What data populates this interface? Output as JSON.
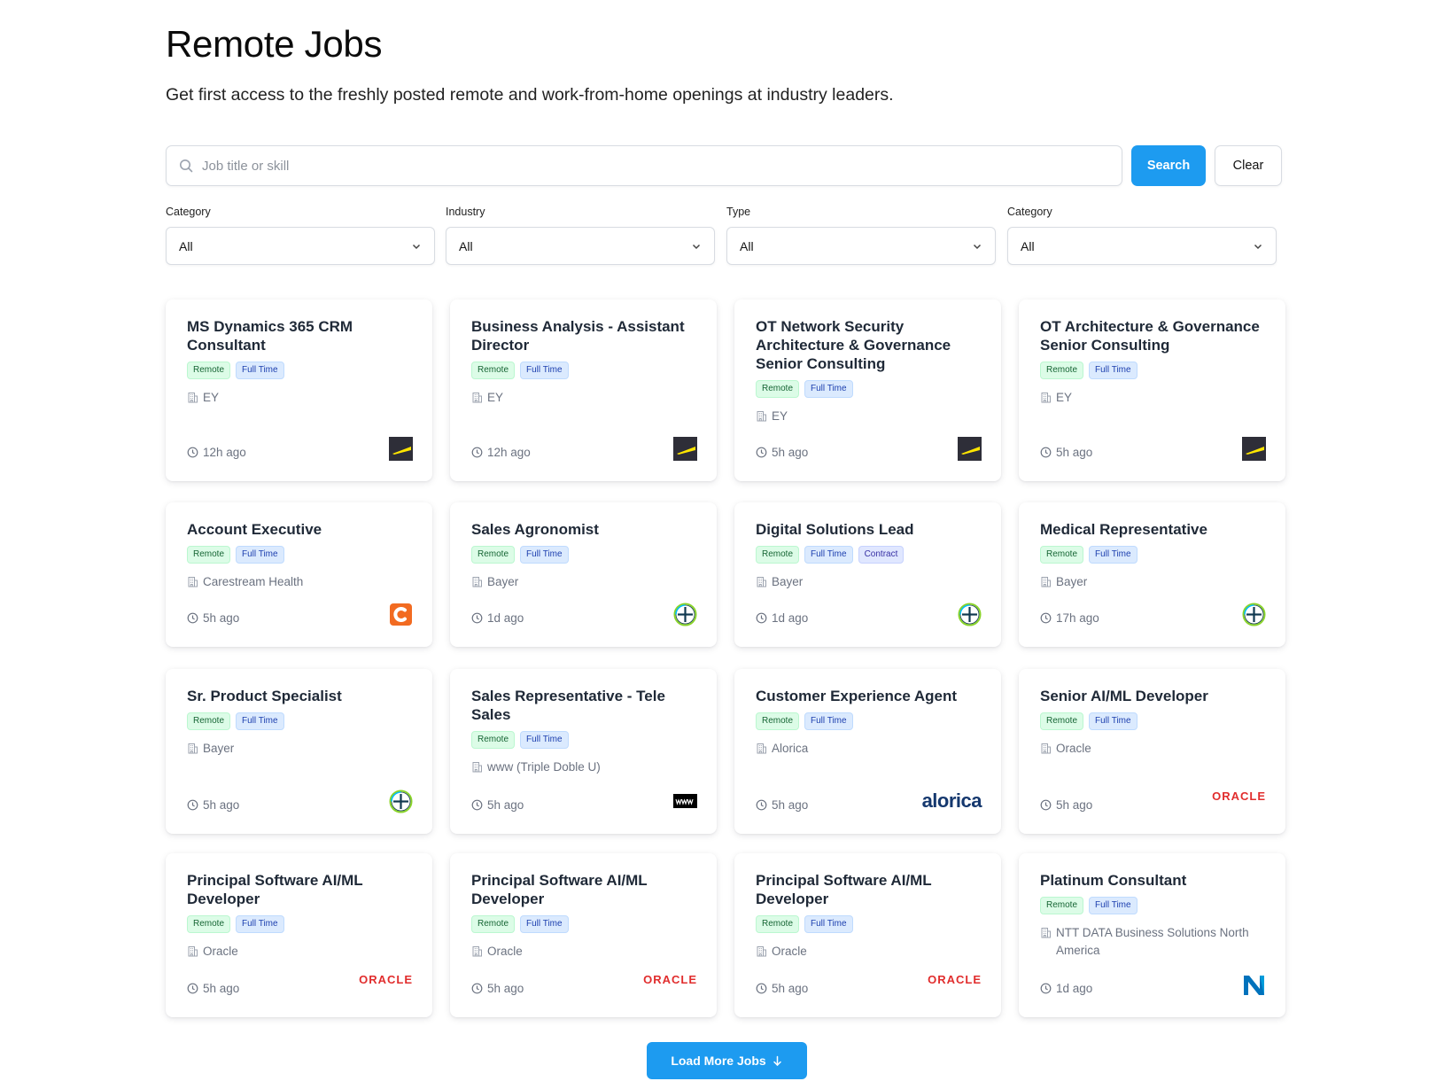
{
  "header": {
    "title": "Remote Jobs",
    "subtitle": "Get first access to the freshly posted remote and work-from-home openings at industry leaders."
  },
  "search": {
    "placeholder": "Job title or skill",
    "value": "",
    "search_label": "Search",
    "clear_label": "Clear"
  },
  "filters": [
    {
      "label": "Category",
      "value": "All"
    },
    {
      "label": "Industry",
      "value": "All"
    },
    {
      "label": "Type",
      "value": "All"
    },
    {
      "label": "Category",
      "value": "All"
    }
  ],
  "jobs": [
    {
      "title": "MS Dynamics 365 CRM Consultant",
      "tags": [
        "Remote",
        "Full Time"
      ],
      "company": "EY",
      "posted": "12h ago",
      "logo": "ey-logo"
    },
    {
      "title": "Business Analysis - Assistant Director",
      "tags": [
        "Remote",
        "Full Time"
      ],
      "company": "EY",
      "posted": "12h ago",
      "logo": "ey-logo"
    },
    {
      "title": "OT Network Security Architecture & Governance Senior Consulting",
      "tags": [
        "Remote",
        "Full Time"
      ],
      "company": "EY",
      "posted": "5h ago",
      "logo": "ey-logo"
    },
    {
      "title": "OT Architecture & Governance Senior Consulting",
      "tags": [
        "Remote",
        "Full Time"
      ],
      "company": "EY",
      "posted": "5h ago",
      "logo": "ey-logo"
    },
    {
      "title": "Account Executive",
      "tags": [
        "Remote",
        "Full Time"
      ],
      "company": "Carestream Health",
      "posted": "5h ago",
      "logo": "carestream-logo"
    },
    {
      "title": "Sales Agronomist",
      "tags": [
        "Remote",
        "Full Time"
      ],
      "company": "Bayer",
      "posted": "1d ago",
      "logo": "bayer-logo"
    },
    {
      "title": "Digital Solutions Lead",
      "tags": [
        "Remote",
        "Full Time",
        "Contract"
      ],
      "company": "Bayer",
      "posted": "1d ago",
      "logo": "bayer-logo"
    },
    {
      "title": "Medical Representative",
      "tags": [
        "Remote",
        "Full Time"
      ],
      "company": "Bayer",
      "posted": "17h ago",
      "logo": "bayer-logo"
    },
    {
      "title": "Sr. Product Specialist",
      "tags": [
        "Remote",
        "Full Time"
      ],
      "company": "Bayer",
      "posted": "5h ago",
      "logo": "bayer-logo"
    },
    {
      "title": "Sales Representative - Tele Sales",
      "tags": [
        "Remote",
        "Full Time"
      ],
      "company": "www (Triple Doble U)",
      "posted": "5h ago",
      "logo": "www-logo"
    },
    {
      "title": "Customer Experience Agent",
      "tags": [
        "Remote",
        "Full Time"
      ],
      "company": "Alorica",
      "posted": "5h ago",
      "logo": "alorica-logo",
      "logo_text": "alorica"
    },
    {
      "title": "Senior AI/ML Developer",
      "tags": [
        "Remote",
        "Full Time"
      ],
      "company": "Oracle",
      "posted": "5h ago",
      "logo": "oracle-logo",
      "logo_text": "ORACLE"
    },
    {
      "title": "Principal Software AI/ML Developer",
      "tags": [
        "Remote",
        "Full Time"
      ],
      "company": "Oracle",
      "posted": "5h ago",
      "logo": "oracle-logo",
      "logo_text": "ORACLE"
    },
    {
      "title": "Principal Software AI/ML Developer",
      "tags": [
        "Remote",
        "Full Time"
      ],
      "company": "Oracle",
      "posted": "5h ago",
      "logo": "oracle-logo",
      "logo_text": "ORACLE"
    },
    {
      "title": "Principal Software AI/ML Developer",
      "tags": [
        "Remote",
        "Full Time"
      ],
      "company": "Oracle",
      "posted": "5h ago",
      "logo": "oracle-logo",
      "logo_text": "ORACLE"
    },
    {
      "title": "Platinum Consultant",
      "tags": [
        "Remote",
        "Full Time"
      ],
      "company": "NTT DATA Business Solutions North America",
      "posted": "1d ago",
      "logo": "ntt-data-logo"
    }
  ],
  "load_more": {
    "label": "Load More Jobs",
    "icon": "arrow-down-icon"
  },
  "colors": {
    "accent": "#1d9bf0",
    "remote_badge": "#dcfce7",
    "fulltime_badge": "#dbeafe",
    "oracle_red": "#e12d2d",
    "alorica_blue": "#15386e"
  }
}
